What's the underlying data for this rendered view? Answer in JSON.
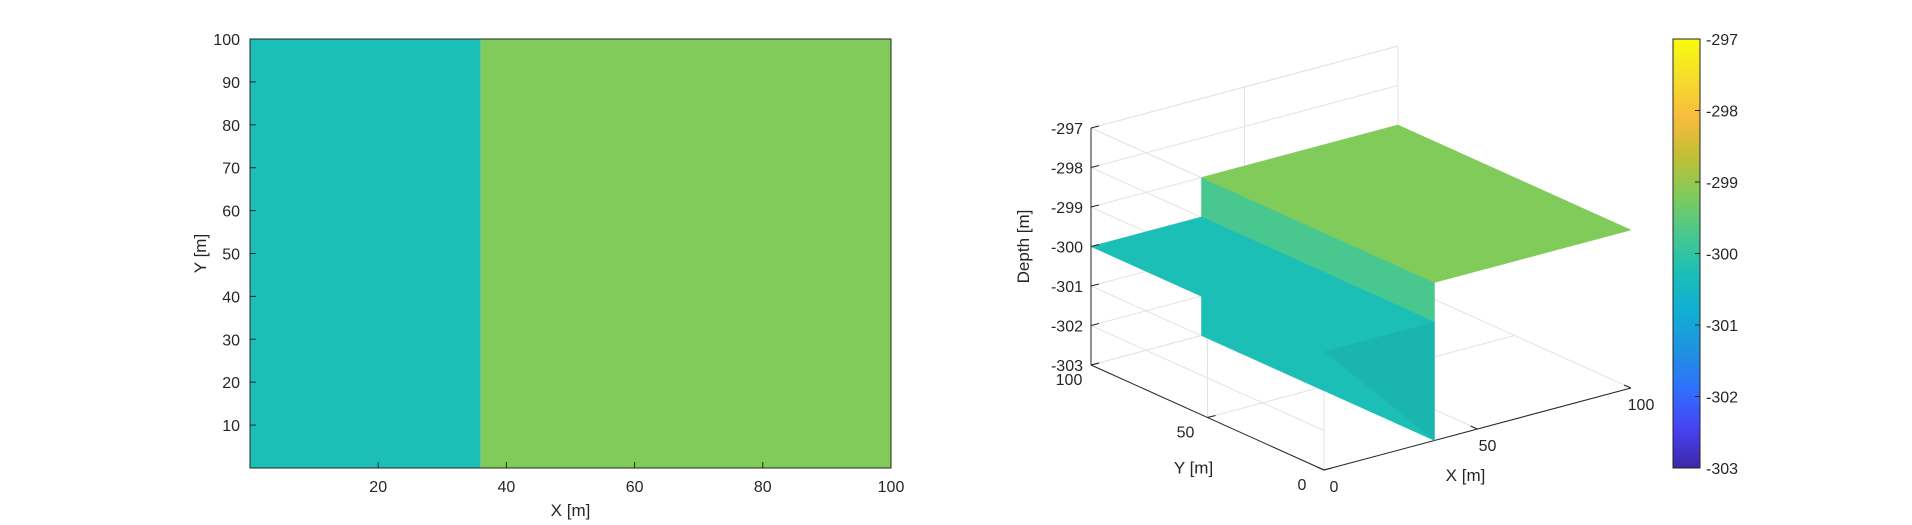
{
  "chart_data": [
    {
      "type": "heatmap",
      "xlabel": "X [m]",
      "ylabel": "Y [m]",
      "xlim": [
        0,
        100
      ],
      "ylim": [
        0,
        100
      ],
      "xticks": [
        20,
        40,
        60,
        80,
        100
      ],
      "yticks": [
        10,
        20,
        30,
        40,
        50,
        60,
        70,
        80,
        90,
        100
      ],
      "regions": [
        {
          "x_range": [
            0,
            36
          ],
          "y_range": [
            0,
            100
          ],
          "depth": -300,
          "color": "#1bbfb6"
        },
        {
          "x_range": [
            36,
            100
          ],
          "y_range": [
            0,
            100
          ],
          "depth": -299,
          "color": "#80cb5a"
        }
      ]
    },
    {
      "type": "surface3d",
      "xlabel": "X [m]",
      "ylabel": "Y [m]",
      "zlabel": "Depth [m]",
      "xlim": [
        0,
        100
      ],
      "ylim": [
        0,
        100
      ],
      "zlim": [
        -303,
        -297
      ],
      "xticks": [
        0,
        50,
        100
      ],
      "yticks": [
        0,
        50,
        100
      ],
      "zticks": [
        -303,
        -302,
        -301,
        -300,
        -299,
        -298,
        -297
      ],
      "grid": true,
      "surfaces": [
        {
          "x_range": [
            0,
            36
          ],
          "y_range": [
            0,
            100
          ],
          "depth": -300,
          "color": "#1bbfb6"
        },
        {
          "x_range": [
            36,
            100
          ],
          "y_range": [
            0,
            100
          ],
          "depth": -299,
          "color": "#80cb5a"
        }
      ],
      "colorbar": {
        "range": [
          -303,
          -297
        ],
        "ticks": [
          -297,
          -298,
          -299,
          -300,
          -301,
          -302,
          -303
        ],
        "colormap": [
          "#3e26a8",
          "#4743f1",
          "#2f6ffe",
          "#1f92e0",
          "#11aed4",
          "#1bbfb6",
          "#48c88f",
          "#80cb5a",
          "#c1bf36",
          "#f9bc3d",
          "#f5dd2b",
          "#f9fb0e"
        ]
      }
    }
  ]
}
